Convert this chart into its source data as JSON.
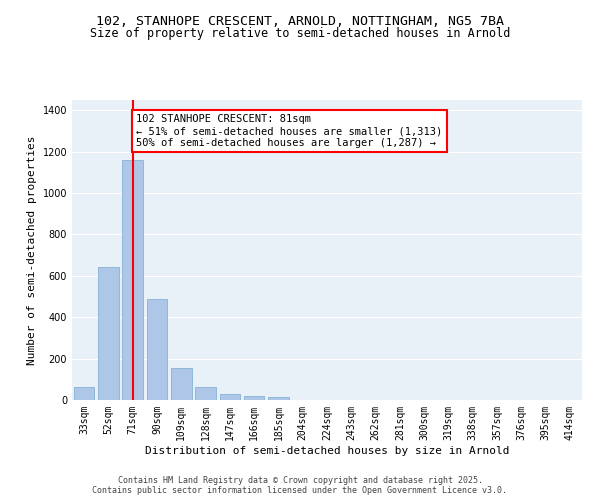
{
  "title_line1": "102, STANHOPE CRESCENT, ARNOLD, NOTTINGHAM, NG5 7BA",
  "title_line2": "Size of property relative to semi-detached houses in Arnold",
  "xlabel": "Distribution of semi-detached houses by size in Arnold",
  "ylabel": "Number of semi-detached properties",
  "categories": [
    "33sqm",
    "52sqm",
    "71sqm",
    "90sqm",
    "109sqm",
    "128sqm",
    "147sqm",
    "166sqm",
    "185sqm",
    "204sqm",
    "224sqm",
    "243sqm",
    "262sqm",
    "281sqm",
    "300sqm",
    "319sqm",
    "338sqm",
    "357sqm",
    "376sqm",
    "395sqm",
    "414sqm"
  ],
  "values": [
    65,
    645,
    1160,
    490,
    155,
    65,
    28,
    18,
    13,
    0,
    0,
    0,
    0,
    0,
    0,
    0,
    0,
    0,
    0,
    0,
    0
  ],
  "bar_color": "#aec6e8",
  "bar_edge_color": "#7aaad0",
  "vline_x": 2,
  "vline_color": "red",
  "annotation_text": "102 STANHOPE CRESCENT: 81sqm\n← 51% of semi-detached houses are smaller (1,313)\n50% of semi-detached houses are larger (1,287) →",
  "annotation_box_color": "white",
  "annotation_border_color": "red",
  "ylim": [
    0,
    1450
  ],
  "yticks": [
    0,
    200,
    400,
    600,
    800,
    1000,
    1200,
    1400
  ],
  "background_color": "#e8f0f8",
  "grid_color": "white",
  "footer_text": "Contains HM Land Registry data © Crown copyright and database right 2025.\nContains public sector information licensed under the Open Government Licence v3.0.",
  "title_fontsize": 9.5,
  "subtitle_fontsize": 8.5,
  "axis_label_fontsize": 8,
  "tick_fontsize": 7,
  "annotation_fontsize": 7.5,
  "footer_fontsize": 6
}
